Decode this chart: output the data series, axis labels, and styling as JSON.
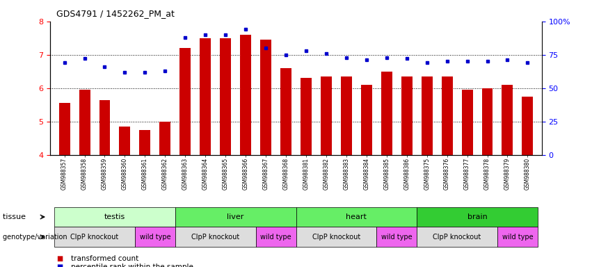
{
  "title": "GDS4791 / 1452262_PM_at",
  "samples": [
    "GSM988357",
    "GSM988358",
    "GSM988359",
    "GSM988360",
    "GSM988361",
    "GSM988362",
    "GSM988363",
    "GSM988364",
    "GSM988365",
    "GSM988366",
    "GSM988367",
    "GSM988368",
    "GSM988381",
    "GSM988382",
    "GSM988383",
    "GSM988384",
    "GSM988385",
    "GSM988386",
    "GSM988375",
    "GSM988376",
    "GSM988377",
    "GSM988378",
    "GSM988379",
    "GSM988380"
  ],
  "bar_values": [
    5.55,
    5.95,
    5.65,
    4.85,
    4.75,
    5.0,
    7.2,
    7.5,
    7.5,
    7.6,
    7.45,
    6.6,
    6.3,
    6.35,
    6.35,
    6.1,
    6.5,
    6.35,
    6.35,
    6.35,
    5.95,
    6.0,
    6.1,
    5.75
  ],
  "dot_values": [
    69,
    72,
    66,
    62,
    62,
    63,
    88,
    90,
    90,
    94,
    80,
    75,
    78,
    76,
    73,
    71,
    73,
    72,
    69,
    70,
    70,
    70,
    71,
    69
  ],
  "ylim_left": [
    4,
    8
  ],
  "ylim_right": [
    0,
    100
  ],
  "yticks_left": [
    4,
    5,
    6,
    7,
    8
  ],
  "yticks_right": [
    0,
    25,
    50,
    75,
    100
  ],
  "ytick_labels_right": [
    "0",
    "25",
    "50",
    "75",
    "100%"
  ],
  "bar_color": "#cc0000",
  "dot_color": "#0000cc",
  "background_color": "#ffffff",
  "tissue_row": [
    {
      "label": "testis",
      "start": 0,
      "end": 6
    },
    {
      "label": "liver",
      "start": 6,
      "end": 12
    },
    {
      "label": "heart",
      "start": 12,
      "end": 18
    },
    {
      "label": "brain",
      "start": 18,
      "end": 24
    }
  ],
  "tissue_colors": {
    "testis": "#ccffcc",
    "liver": "#66ee66",
    "heart": "#66ee66",
    "brain": "#33cc33"
  },
  "genotype_row": [
    {
      "label": "ClpP knockout",
      "start": 0,
      "end": 4
    },
    {
      "label": "wild type",
      "start": 4,
      "end": 6
    },
    {
      "label": "ClpP knockout",
      "start": 6,
      "end": 10
    },
    {
      "label": "wild type",
      "start": 10,
      "end": 12
    },
    {
      "label": "ClpP knockout",
      "start": 12,
      "end": 16
    },
    {
      "label": "wild type",
      "start": 16,
      "end": 18
    },
    {
      "label": "ClpP knockout",
      "start": 18,
      "end": 22
    },
    {
      "label": "wild type",
      "start": 22,
      "end": 24
    }
  ],
  "genotype_colors": {
    "ClpP knockout": "#dddddd",
    "wild type": "#ee66ee"
  },
  "legend_bar_label": "transformed count",
  "legend_dot_label": "percentile rank within the sample",
  "tissue_label": "tissue",
  "genotype_label": "genotype/variation",
  "grid_yticks": [
    5,
    6,
    7
  ]
}
